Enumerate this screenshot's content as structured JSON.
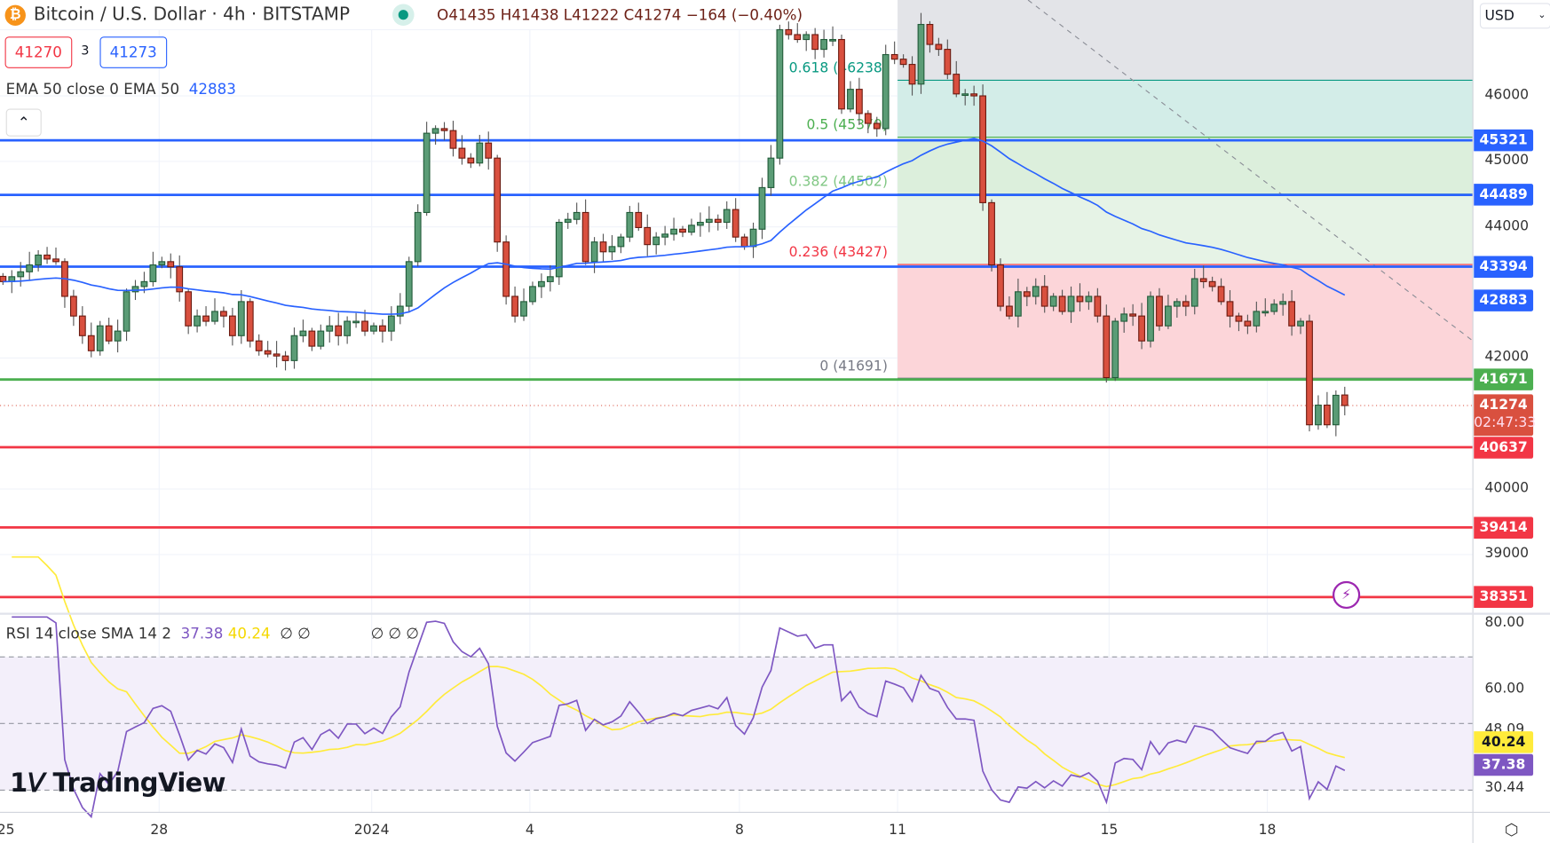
{
  "header": {
    "symbol": "Bitcoin / U.S. Dollar · 4h · BITSTAMP",
    "ohlc": {
      "open": "O41435",
      "high": "H41438",
      "low": "L41222",
      "close": "C41274",
      "change": "−164 (−0.40%)"
    },
    "market_status": "open"
  },
  "trade": {
    "sell": "41270",
    "spread": "3",
    "buy": "41273"
  },
  "ema_legend": {
    "label": "EMA 50 close 0 EMA 50",
    "value": "42883"
  },
  "rsi_legend": {
    "label": "RSI 14 close SMA 14 2",
    "rsi": "37.38",
    "sma": "40.24",
    "extra1": "∅ ∅",
    "extra2": "∅ ∅ ∅"
  },
  "currency": "USD",
  "colors": {
    "up": "#5b9c76",
    "down": "#d9503f",
    "ema": "#2962ff",
    "rsi": "#7e57c2",
    "rsi_sma": "#ffeb3b",
    "support": "#f23645",
    "resistance": "#2962ff",
    "fib_base": "#4caf50"
  },
  "price_ticks": [
    "46000",
    "45000",
    "44000",
    "42000",
    "40000",
    "39000"
  ],
  "rsi_ticks": [
    "80.00",
    "60.00",
    "48.09",
    "30.44"
  ],
  "x_labels": [
    "25",
    "28",
    "2024",
    "4",
    "8",
    "11",
    "15",
    "18"
  ],
  "levels": {
    "resistance": [
      45321,
      44489,
      43394
    ],
    "fib_base": 41671,
    "support": [
      40637,
      39414,
      38351
    ]
  },
  "price_tags": {
    "r1": "45321",
    "r2": "44489",
    "r3": "43394",
    "ema": "42883",
    "g": "41671",
    "last": "41274",
    "countdown": "02:47:33",
    "s1": "40637",
    "s2": "39414",
    "s3": "38351",
    "rsi_sma": "40.24",
    "rsi": "37.38"
  },
  "fib": [
    {
      "label": "0.618 (46238)",
      "price": 46238,
      "color": "#089981"
    },
    {
      "label": "0.5 (45370)",
      "price": 45370,
      "color": "#4caf50"
    },
    {
      "label": "0.382 (44502)",
      "price": 44502,
      "color": "#81c784"
    },
    {
      "label": "0.236 (43427)",
      "price": 43427,
      "color": "#f23645"
    },
    {
      "label": "0 (41691)",
      "price": 41691,
      "color": "#787b86"
    }
  ],
  "closes": [
    43165,
    43240,
    43315,
    43420,
    43570,
    43510,
    43470,
    42940,
    42640,
    42340,
    42110,
    42490,
    42260,
    42410,
    43010,
    43090,
    43165,
    43420,
    43470,
    43390,
    43010,
    42490,
    42640,
    42560,
    42710,
    42640,
    42340,
    42860,
    42260,
    42110,
    42060,
    42030,
    41960,
    42340,
    42410,
    42180,
    42410,
    42490,
    42340,
    42560,
    42560,
    42410,
    42490,
    42410,
    42640,
    42790,
    43470,
    44220,
    45430,
    45500,
    45470,
    45200,
    45050,
    44975,
    45280,
    45050,
    43770,
    42940,
    42640,
    42860,
    43090,
    43165,
    43240,
    44070,
    44115,
    44220,
    43470,
    43770,
    43620,
    43700,
    43845,
    44220,
    43990,
    43730,
    43845,
    43890,
    43965,
    43920,
    44025,
    44070,
    44115,
    44070,
    44265,
    43845,
    43700,
    43965,
    44600,
    45050,
    47010,
    46935,
    46860,
    46935,
    46710,
    46860,
    46860,
    45800,
    46100,
    45730,
    45580,
    45500,
    46630,
    46560,
    46480,
    46180,
    47090,
    46785,
    46710,
    46330,
    46030,
    46030,
    46000,
    44370,
    43420,
    42790,
    42640,
    43010,
    42940,
    43090,
    42790,
    42940,
    42710,
    42940,
    42860,
    42940,
    42640,
    41700,
    42560,
    42670,
    42640,
    42260,
    42940,
    42490,
    42790,
    42860,
    42790,
    43210,
    43165,
    43090,
    42860,
    42640,
    42560,
    42490,
    42710,
    42710,
    42820,
    42860,
    42490,
    42560,
    40980,
    41280,
    40980,
    41430,
    41274
  ],
  "last_open": 41435
}
